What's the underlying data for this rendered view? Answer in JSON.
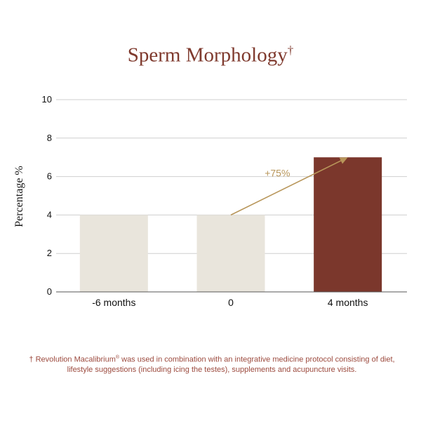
{
  "chart_data": {
    "type": "bar",
    "title": "Sperm Morphology",
    "title_mark": "†",
    "ylabel": "Percentage %",
    "xlabel": "",
    "categories": [
      "-6 months",
      "0",
      "4 months"
    ],
    "values": [
      4,
      4,
      7
    ],
    "bar_colors": [
      "#e9e5dc",
      "#e9e5dc",
      "#7b372c"
    ],
    "ylim": [
      0,
      10
    ],
    "yticks": [
      0,
      2,
      4,
      6,
      8,
      10
    ],
    "grid": true,
    "annotation": {
      "text": "+75%",
      "from": {
        "category": "0",
        "value": 4
      },
      "to": {
        "category": "4 months",
        "value": 7
      },
      "color": "#b8965a"
    }
  },
  "footnote": {
    "mark": "† Revolution Macalibrium",
    "registered": "®",
    "text": " was used in combination with an integrative medicine protocol consisting of diet, lifestyle suggestions (including icing the testes), supplements and acupuncture visits."
  }
}
